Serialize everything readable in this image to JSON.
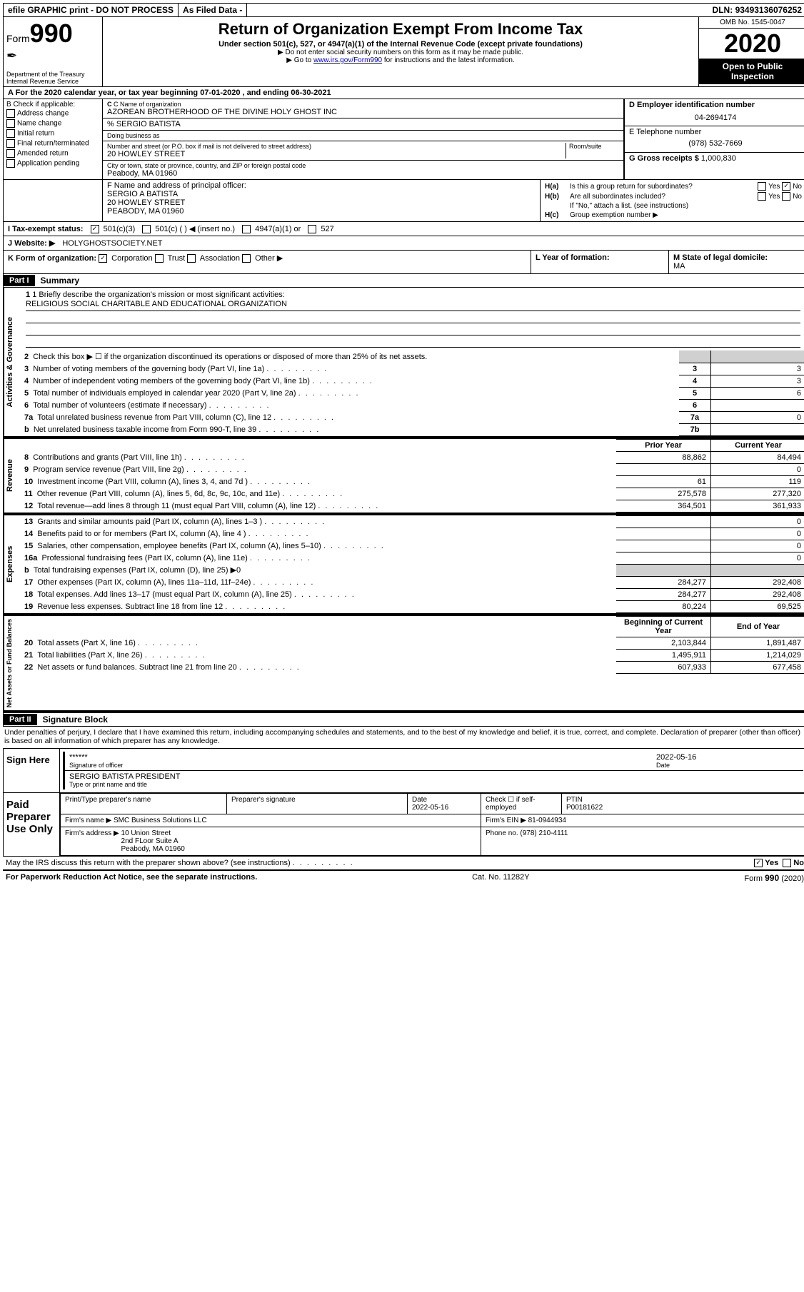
{
  "topbar": {
    "efile": "efile GRAPHIC print - DO NOT PROCESS",
    "asfiled": "As Filed Data -",
    "dln_label": "DLN:",
    "dln": "93493136076252"
  },
  "header": {
    "form_label": "Form",
    "form_no": "990",
    "dept": "Department of the Treasury",
    "irs": "Internal Revenue Service",
    "title": "Return of Organization Exempt From Income Tax",
    "subtitle": "Under section 501(c), 527, or 4947(a)(1) of the Internal Revenue Code (except private foundations)",
    "note1": "▶ Do not enter social security numbers on this form as it may be made public.",
    "note2_pre": "▶ Go to ",
    "note2_link": "www.irs.gov/Form990",
    "note2_post": " for instructions and the latest information.",
    "omb": "OMB No. 1545-0047",
    "year": "2020",
    "inspection": "Open to Public Inspection"
  },
  "rowA": "A   For the 2020 calendar year, or tax year beginning 07-01-2020   , and ending 06-30-2021",
  "boxB": {
    "title": "B Check if applicable:",
    "items": [
      "Address change",
      "Name change",
      "Initial return",
      "Final return/terminated",
      "Amended return",
      "Application pending"
    ]
  },
  "boxC": {
    "label": "C Name of organization",
    "name": "AZOREAN BROTHERHOOD OF THE DIVINE HOLY GHOST INC",
    "care_of": "% SERGIO BATISTA",
    "dba_label": "Doing business as",
    "street_label": "Number and street (or P.O. box if mail is not delivered to street address)",
    "room_label": "Room/suite",
    "street": "20 HOWLEY STREET",
    "city_label": "City or town, state or province, country, and ZIP or foreign postal code",
    "city": "Peabody, MA  01960"
  },
  "boxD": {
    "label": "D Employer identification number",
    "value": "04-2694174"
  },
  "boxE": {
    "label": "E Telephone number",
    "value": "(978) 532-7669"
  },
  "boxG": {
    "label": "G Gross receipts $",
    "value": "1,000,830"
  },
  "boxF": {
    "label": "F   Name and address of principal officer:",
    "name": "SERGIO A BATISTA",
    "street": "20 HOWLEY STREET",
    "city": "PEABODY, MA  01960"
  },
  "boxH": {
    "a": "Is this a group return for subordinates?",
    "b": "Are all subordinates included?",
    "b_note": "If \"No,\" attach a list. (see instructions)",
    "c": "Group exemption number ▶",
    "yes": "Yes",
    "no": "No"
  },
  "rowI": {
    "label": "I   Tax-exempt status:",
    "opts": [
      "501(c)(3)",
      "501(c) (   ) ◀ (insert no.)",
      "4947(a)(1) or",
      "527"
    ]
  },
  "rowJ": {
    "label": "J   Website: ▶",
    "value": "HOLYGHOSTSOCIETY.NET"
  },
  "rowK": {
    "label": "K Form of organization:",
    "opts": [
      "Corporation",
      "Trust",
      "Association",
      "Other ▶"
    ]
  },
  "rowL": {
    "label": "L Year of formation:"
  },
  "rowM": {
    "label": "M State of legal domicile:",
    "value": "MA"
  },
  "part1": {
    "header": "Part I",
    "title": "Summary",
    "line1": "1 Briefly describe the organization's mission or most significant activities:",
    "mission": "RELIGIOUS SOCIAL CHARITABLE AND EDUCATIONAL ORGANIZATION",
    "line2": "Check this box ▶ ☐  if the organization discontinued its operations or disposed of more than 25% of its net assets.",
    "governance_label": "Activities & Governance",
    "revenue_label": "Revenue",
    "expenses_label": "Expenses",
    "netassets_label": "Net Assets or Fund Balances",
    "lines_gov": [
      {
        "n": "2",
        "txt": "Check this box ▶",
        "val": ""
      },
      {
        "n": "3",
        "txt": "Number of voting members of the governing body (Part VI, line 1a)",
        "lbl": "3",
        "val": "3"
      },
      {
        "n": "4",
        "txt": "Number of independent voting members of the governing body (Part VI, line 1b)",
        "lbl": "4",
        "val": "3"
      },
      {
        "n": "5",
        "txt": "Total number of individuals employed in calendar year 2020 (Part V, line 2a)",
        "lbl": "5",
        "val": "6"
      },
      {
        "n": "6",
        "txt": "Total number of volunteers (estimate if necessary)",
        "lbl": "6",
        "val": ""
      },
      {
        "n": "7a",
        "txt": "Total unrelated business revenue from Part VIII, column (C), line 12",
        "lbl": "7a",
        "val": "0"
      },
      {
        "n": "b",
        "txt": "Net unrelated business taxable income from Form 990-T, line 39",
        "lbl": "7b",
        "val": ""
      }
    ],
    "col_prior": "Prior Year",
    "col_current": "Current Year",
    "lines_rev": [
      {
        "n": "8",
        "txt": "Contributions and grants (Part VIII, line 1h)",
        "p": "88,862",
        "c": "84,494"
      },
      {
        "n": "9",
        "txt": "Program service revenue (Part VIII, line 2g)",
        "p": "",
        "c": "0"
      },
      {
        "n": "10",
        "txt": "Investment income (Part VIII, column (A), lines 3, 4, and 7d )",
        "p": "61",
        "c": "119"
      },
      {
        "n": "11",
        "txt": "Other revenue (Part VIII, column (A), lines 5, 6d, 8c, 9c, 10c, and 11e)",
        "p": "275,578",
        "c": "277,320"
      },
      {
        "n": "12",
        "txt": "Total revenue—add lines 8 through 11 (must equal Part VIII, column (A), line 12)",
        "p": "364,501",
        "c": "361,933"
      }
    ],
    "lines_exp": [
      {
        "n": "13",
        "txt": "Grants and similar amounts paid (Part IX, column (A), lines 1–3 )",
        "p": "",
        "c": "0"
      },
      {
        "n": "14",
        "txt": "Benefits paid to or for members (Part IX, column (A), line 4 )",
        "p": "",
        "c": "0"
      },
      {
        "n": "15",
        "txt": "Salaries, other compensation, employee benefits (Part IX, column (A), lines 5–10)",
        "p": "",
        "c": "0"
      },
      {
        "n": "16a",
        "txt": "Professional fundraising fees (Part IX, column (A), line 11e)",
        "p": "",
        "c": "0"
      },
      {
        "n": "b",
        "txt": "Total fundraising expenses (Part IX, column (D), line 25) ▶0",
        "p": "shaded",
        "c": "shaded"
      },
      {
        "n": "17",
        "txt": "Other expenses (Part IX, column (A), lines 11a–11d, 11f–24e)",
        "p": "284,277",
        "c": "292,408"
      },
      {
        "n": "18",
        "txt": "Total expenses. Add lines 13–17 (must equal Part IX, column (A), line 25)",
        "p": "284,277",
        "c": "292,408"
      },
      {
        "n": "19",
        "txt": "Revenue less expenses. Subtract line 18 from line 12",
        "p": "80,224",
        "c": "69,525"
      }
    ],
    "col_begin": "Beginning of Current Year",
    "col_end": "End of Year",
    "lines_net": [
      {
        "n": "20",
        "txt": "Total assets (Part X, line 16)",
        "p": "2,103,844",
        "c": "1,891,487"
      },
      {
        "n": "21",
        "txt": "Total liabilities (Part X, line 26)",
        "p": "1,495,911",
        "c": "1,214,029"
      },
      {
        "n": "22",
        "txt": "Net assets or fund balances. Subtract line 21 from line 20",
        "p": "607,933",
        "c": "677,458"
      }
    ]
  },
  "part2": {
    "header": "Part II",
    "title": "Signature Block",
    "declare": "Under penalties of perjury, I declare that I have examined this return, including accompanying schedules and statements, and to the best of my knowledge and belief, it is true, correct, and complete. Declaration of preparer (other than officer) is based on all information of which preparer has any knowledge.",
    "sign_here": "Sign Here",
    "sig_stars": "******",
    "sig_officer": "Signature of officer",
    "sig_date": "2022-05-16",
    "date_label": "Date",
    "officer_name": "SERGIO BATISTA PRESIDENT",
    "type_label": "Type or print name and title",
    "paid": "Paid Preparer Use Only",
    "prep_name_label": "Print/Type preparer's name",
    "prep_sig_label": "Preparer's signature",
    "prep_date": "2022-05-16",
    "check_label": "Check ☐ if self-employed",
    "ptin_label": "PTIN",
    "ptin": "P00181622",
    "firm_name_label": "Firm's name    ▶",
    "firm_name": "SMC Business Solutions LLC",
    "firm_ein_label": "Firm's EIN ▶",
    "firm_ein": "81-0944934",
    "firm_addr_label": "Firm's address ▶",
    "firm_addr": "10 Union Street\n2nd FLoor Suite A\nPeabody, MA  01960",
    "phone_label": "Phone no.",
    "phone": "(978) 210-4111",
    "discuss": "May the IRS discuss this return with the preparer shown above? (see instructions)",
    "paperwork": "For Paperwork Reduction Act Notice, see the separate instructions.",
    "catno": "Cat. No. 11282Y",
    "formref": "Form 990 (2020)"
  }
}
